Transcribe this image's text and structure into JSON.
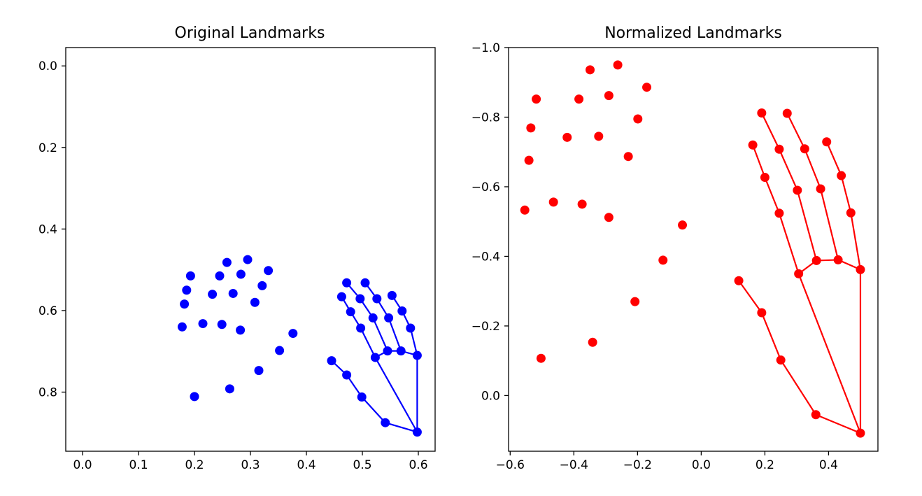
{
  "chart_data": [
    {
      "type": "scatter",
      "title": "Original Landmarks",
      "xlabel": "",
      "ylabel": "",
      "xlim": [
        -0.03,
        0.63
      ],
      "ylim": [
        0.945,
        -0.045
      ],
      "y_inverted": true,
      "grid": false,
      "xticks": [
        0.0,
        0.1,
        0.2,
        0.3,
        0.4,
        0.5,
        0.6
      ],
      "xtick_labels": [
        "0.0",
        "0.1",
        "0.2",
        "0.3",
        "0.4",
        "0.5",
        "0.6"
      ],
      "yticks": [
        0.0,
        0.2,
        0.4,
        0.6,
        0.8
      ],
      "ytick_labels": [
        "0.0",
        "0.2",
        "0.4",
        "0.6",
        "0.8"
      ],
      "color": "#0000ff",
      "scatter_points": [
        {
          "x": 0.295,
          "y": 0.475
        },
        {
          "x": 0.258,
          "y": 0.482
        },
        {
          "x": 0.332,
          "y": 0.502
        },
        {
          "x": 0.193,
          "y": 0.515
        },
        {
          "x": 0.245,
          "y": 0.515
        },
        {
          "x": 0.283,
          "y": 0.511
        },
        {
          "x": 0.321,
          "y": 0.539
        },
        {
          "x": 0.186,
          "y": 0.55
        },
        {
          "x": 0.232,
          "y": 0.56
        },
        {
          "x": 0.269,
          "y": 0.558
        },
        {
          "x": 0.182,
          "y": 0.584
        },
        {
          "x": 0.308,
          "y": 0.58
        },
        {
          "x": 0.178,
          "y": 0.64
        },
        {
          "x": 0.215,
          "y": 0.632
        },
        {
          "x": 0.249,
          "y": 0.634
        },
        {
          "x": 0.282,
          "y": 0.648
        },
        {
          "x": 0.376,
          "y": 0.656
        },
        {
          "x": 0.352,
          "y": 0.698
        },
        {
          "x": 0.315,
          "y": 0.747
        },
        {
          "x": 0.263,
          "y": 0.792
        },
        {
          "x": 0.2,
          "y": 0.811
        }
      ],
      "hand_points": [
        {
          "x": 0.598,
          "y": 0.898
        },
        {
          "x": 0.541,
          "y": 0.875
        },
        {
          "x": 0.499,
          "y": 0.812
        },
        {
          "x": 0.472,
          "y": 0.758
        },
        {
          "x": 0.445,
          "y": 0.723
        },
        {
          "x": 0.523,
          "y": 0.715
        },
        {
          "x": 0.497,
          "y": 0.643
        },
        {
          "x": 0.479,
          "y": 0.603
        },
        {
          "x": 0.463,
          "y": 0.566
        },
        {
          "x": 0.545,
          "y": 0.699
        },
        {
          "x": 0.519,
          "y": 0.618
        },
        {
          "x": 0.496,
          "y": 0.571
        },
        {
          "x": 0.472,
          "y": 0.532
        },
        {
          "x": 0.569,
          "y": 0.699
        },
        {
          "x": 0.547,
          "y": 0.618
        },
        {
          "x": 0.526,
          "y": 0.571
        },
        {
          "x": 0.505,
          "y": 0.532
        },
        {
          "x": 0.598,
          "y": 0.71
        },
        {
          "x": 0.586,
          "y": 0.643
        },
        {
          "x": 0.571,
          "y": 0.601
        },
        {
          "x": 0.553,
          "y": 0.563
        }
      ]
    },
    {
      "type": "scatter",
      "title": "Normalized Landmarks",
      "xlabel": "",
      "ylabel": "",
      "xlim": [
        -0.605,
        0.555
      ],
      "ylim": [
        0.16,
        -1.0
      ],
      "y_inverted": true,
      "grid": false,
      "xticks": [
        -0.6,
        -0.4,
        -0.2,
        0.0,
        0.2,
        0.4
      ],
      "xtick_labels": [
        "−0.6",
        "−0.4",
        "−0.2",
        "0.0",
        "0.2",
        "0.4"
      ],
      "yticks": [
        0.0,
        -0.2,
        -0.4,
        -0.6,
        -0.8,
        -1.0
      ],
      "ytick_labels": [
        "0.0",
        "−0.2",
        "−0.4",
        "−0.6",
        "−0.8",
        "−1.0"
      ],
      "color": "#ff0000",
      "scatter_points": [
        {
          "x": -0.262,
          "y": -0.95
        },
        {
          "x": -0.349,
          "y": -0.936
        },
        {
          "x": -0.171,
          "y": -0.886
        },
        {
          "x": -0.518,
          "y": -0.852
        },
        {
          "x": -0.384,
          "y": -0.852
        },
        {
          "x": -0.29,
          "y": -0.862
        },
        {
          "x": -0.199,
          "y": -0.795
        },
        {
          "x": -0.535,
          "y": -0.769
        },
        {
          "x": -0.421,
          "y": -0.742
        },
        {
          "x": -0.322,
          "y": -0.745
        },
        {
          "x": -0.229,
          "y": -0.687
        },
        {
          "x": -0.541,
          "y": -0.676
        },
        {
          "x": -0.554,
          "y": -0.533
        },
        {
          "x": -0.464,
          "y": -0.556
        },
        {
          "x": -0.374,
          "y": -0.55
        },
        {
          "x": -0.29,
          "y": -0.512
        },
        {
          "x": -0.059,
          "y": -0.49
        },
        {
          "x": -0.12,
          "y": -0.389
        },
        {
          "x": -0.208,
          "y": -0.27
        },
        {
          "x": -0.341,
          "y": -0.153
        },
        {
          "x": -0.503,
          "y": -0.107
        }
      ],
      "hand_points": [
        {
          "x": 0.5,
          "y": 0.108
        },
        {
          "x": 0.36,
          "y": 0.055
        },
        {
          "x": 0.25,
          "y": -0.102
        },
        {
          "x": 0.19,
          "y": -0.238
        },
        {
          "x": 0.118,
          "y": -0.33
        },
        {
          "x": 0.306,
          "y": -0.35
        },
        {
          "x": 0.245,
          "y": -0.524
        },
        {
          "x": 0.2,
          "y": -0.627
        },
        {
          "x": 0.162,
          "y": -0.72
        },
        {
          "x": 0.362,
          "y": -0.388
        },
        {
          "x": 0.302,
          "y": -0.59
        },
        {
          "x": 0.245,
          "y": -0.708
        },
        {
          "x": 0.19,
          "y": -0.812
        },
        {
          "x": 0.43,
          "y": -0.39
        },
        {
          "x": 0.375,
          "y": -0.594
        },
        {
          "x": 0.325,
          "y": -0.709
        },
        {
          "x": 0.27,
          "y": -0.811
        },
        {
          "x": 0.5,
          "y": -0.362
        },
        {
          "x": 0.47,
          "y": -0.525
        },
        {
          "x": 0.44,
          "y": -0.632
        },
        {
          "x": 0.394,
          "y": -0.729
        }
      ]
    }
  ]
}
